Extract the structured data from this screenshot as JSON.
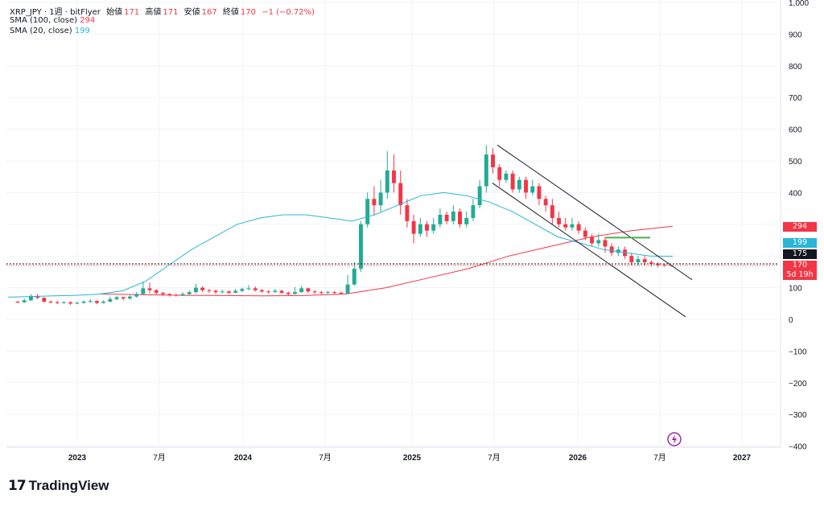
{
  "header": {
    "symbol": "XRP_JPY · 1週 · bitFlyer",
    "open_label": "始値",
    "open": "171",
    "high_label": "高値",
    "high": "171",
    "low_label": "安値",
    "low": "167",
    "close_label": "終値",
    "close": "170",
    "change": "−1 (−0.72%)",
    "sma100_label": "SMA (100, close)",
    "sma100_value": "294",
    "sma20_label": "SMA (20, close)",
    "sma20_value": "199"
  },
  "price_tags": {
    "sma100": "294",
    "sma20": "199",
    "crosshair": "175",
    "last": "170",
    "countdown": "5d 19h"
  },
  "brand": {
    "name": "TradingView"
  },
  "colors": {
    "up": "#22ab94",
    "down": "#f23645",
    "sma100": "#f23645",
    "sma20": "#29b6d6",
    "channel": "#131722",
    "hline": "#4caf50",
    "lightning": "#9c27b0"
  },
  "chart_data": {
    "type": "candlestick",
    "y_ticks": [
      "1,000",
      "900",
      "800",
      "700",
      "600",
      "500",
      "400",
      "300",
      "200",
      "100",
      "0",
      "−100",
      "−200",
      "−300",
      "−400"
    ],
    "x_ticks": [
      "2023",
      "7月",
      "2024",
      "7月",
      "2025",
      "7月",
      "2026",
      "7月",
      "2027"
    ],
    "ylim": [
      -400,
      1000
    ],
    "candles": [
      [
        56,
        54,
        58,
        50,
        0
      ],
      [
        54,
        60,
        66,
        52,
        1
      ],
      [
        60,
        74,
        80,
        58,
        1
      ],
      [
        74,
        68,
        80,
        64,
        0
      ],
      [
        68,
        56,
        70,
        52,
        0
      ],
      [
        56,
        54,
        60,
        50,
        0
      ],
      [
        54,
        52,
        58,
        48,
        0
      ],
      [
        52,
        54,
        58,
        50,
        1
      ],
      [
        54,
        50,
        56,
        46,
        0
      ],
      [
        50,
        52,
        56,
        48,
        1
      ],
      [
        52,
        56,
        60,
        50,
        1
      ],
      [
        56,
        58,
        64,
        52,
        1
      ],
      [
        58,
        52,
        60,
        48,
        0
      ],
      [
        52,
        56,
        60,
        50,
        1
      ],
      [
        56,
        64,
        72,
        54,
        1
      ],
      [
        64,
        70,
        74,
        60,
        1
      ],
      [
        70,
        66,
        72,
        60,
        0
      ],
      [
        66,
        72,
        76,
        62,
        1
      ],
      [
        72,
        80,
        86,
        68,
        1
      ],
      [
        80,
        98,
        120,
        78,
        1
      ],
      [
        98,
        92,
        116,
        82,
        0
      ],
      [
        92,
        84,
        96,
        78,
        0
      ],
      [
        84,
        80,
        86,
        74,
        0
      ],
      [
        80,
        78,
        82,
        72,
        0
      ],
      [
        78,
        76,
        80,
        72,
        0
      ],
      [
        76,
        80,
        86,
        74,
        1
      ],
      [
        80,
        86,
        92,
        76,
        1
      ],
      [
        86,
        100,
        112,
        82,
        1
      ],
      [
        100,
        92,
        104,
        86,
        0
      ],
      [
        92,
        90,
        96,
        84,
        0
      ],
      [
        90,
        86,
        94,
        80,
        0
      ],
      [
        86,
        88,
        94,
        82,
        1
      ],
      [
        88,
        84,
        92,
        80,
        0
      ],
      [
        84,
        90,
        96,
        82,
        1
      ],
      [
        90,
        96,
        100,
        86,
        1
      ],
      [
        96,
        98,
        108,
        92,
        1
      ],
      [
        98,
        92,
        104,
        88,
        0
      ],
      [
        92,
        88,
        96,
        84,
        0
      ],
      [
        88,
        86,
        92,
        82,
        0
      ],
      [
        86,
        90,
        96,
        84,
        1
      ],
      [
        90,
        84,
        94,
        80,
        0
      ],
      [
        84,
        80,
        88,
        74,
        0
      ],
      [
        80,
        86,
        102,
        78,
        1
      ],
      [
        86,
        98,
        106,
        84,
        1
      ],
      [
        98,
        88,
        100,
        82,
        0
      ],
      [
        88,
        86,
        92,
        80,
        0
      ],
      [
        86,
        84,
        90,
        78,
        0
      ],
      [
        84,
        86,
        90,
        80,
        1
      ],
      [
        86,
        84,
        90,
        80,
        0
      ],
      [
        84,
        82,
        88,
        78,
        0
      ],
      [
        82,
        110,
        140,
        80,
        1
      ],
      [
        110,
        160,
        180,
        106,
        1
      ],
      [
        160,
        300,
        310,
        150,
        1
      ],
      [
        300,
        380,
        400,
        290,
        1
      ],
      [
        380,
        360,
        420,
        330,
        0
      ],
      [
        360,
        400,
        440,
        340,
        1
      ],
      [
        400,
        470,
        530,
        380,
        1
      ],
      [
        470,
        430,
        520,
        400,
        0
      ],
      [
        430,
        360,
        470,
        330,
        0
      ],
      [
        360,
        310,
        380,
        290,
        0
      ],
      [
        310,
        270,
        330,
        240,
        0
      ],
      [
        270,
        300,
        320,
        260,
        1
      ],
      [
        300,
        280,
        310,
        260,
        0
      ],
      [
        280,
        300,
        320,
        270,
        1
      ],
      [
        300,
        330,
        350,
        290,
        1
      ],
      [
        330,
        310,
        340,
        300,
        0
      ],
      [
        310,
        340,
        360,
        300,
        1
      ],
      [
        340,
        300,
        350,
        290,
        0
      ],
      [
        300,
        320,
        340,
        290,
        1
      ],
      [
        320,
        360,
        380,
        310,
        1
      ],
      [
        360,
        420,
        440,
        350,
        1
      ],
      [
        420,
        520,
        550,
        400,
        1
      ],
      [
        520,
        480,
        540,
        460,
        0
      ],
      [
        480,
        440,
        490,
        420,
        0
      ],
      [
        440,
        460,
        470,
        430,
        1
      ],
      [
        460,
        410,
        470,
        400,
        0
      ],
      [
        410,
        440,
        450,
        400,
        1
      ],
      [
        440,
        400,
        450,
        380,
        0
      ],
      [
        400,
        420,
        440,
        390,
        1
      ],
      [
        420,
        380,
        430,
        360,
        0
      ],
      [
        380,
        360,
        390,
        340,
        0
      ],
      [
        360,
        320,
        380,
        300,
        0
      ],
      [
        320,
        300,
        340,
        290,
        0
      ],
      [
        300,
        290,
        320,
        280,
        0
      ],
      [
        290,
        300,
        320,
        280,
        1
      ],
      [
        300,
        280,
        310,
        270,
        0
      ],
      [
        280,
        260,
        290,
        250,
        0
      ],
      [
        260,
        240,
        270,
        230,
        0
      ],
      [
        240,
        250,
        270,
        230,
        1
      ],
      [
        250,
        230,
        260,
        210,
        0
      ],
      [
        230,
        210,
        240,
        200,
        0
      ],
      [
        210,
        220,
        230,
        200,
        1
      ],
      [
        220,
        200,
        230,
        190,
        0
      ],
      [
        200,
        180,
        210,
        170,
        0
      ],
      [
        180,
        190,
        200,
        170,
        1
      ],
      [
        190,
        180,
        200,
        170,
        0
      ],
      [
        180,
        176,
        186,
        166,
        0
      ],
      [
        176,
        172,
        180,
        164,
        0
      ],
      [
        172,
        171,
        176,
        166,
        0
      ],
      [
        171,
        170,
        171,
        167,
        0
      ]
    ],
    "sma20_values": [
      70,
      72,
      74,
      76,
      80,
      90,
      120,
      170,
      220,
      260,
      300,
      320,
      330,
      330,
      320,
      310,
      330,
      360,
      390,
      400,
      390,
      370,
      340,
      300,
      260,
      240,
      220,
      210,
      200,
      199
    ],
    "sma100_values": [
      80,
      78,
      76,
      75,
      74,
      75,
      80,
      100,
      130,
      160,
      200,
      230,
      260,
      280,
      294
    ],
    "annotations": {
      "channel": "descending parallel channel",
      "horizontal_line": "green segment near 250"
    }
  }
}
